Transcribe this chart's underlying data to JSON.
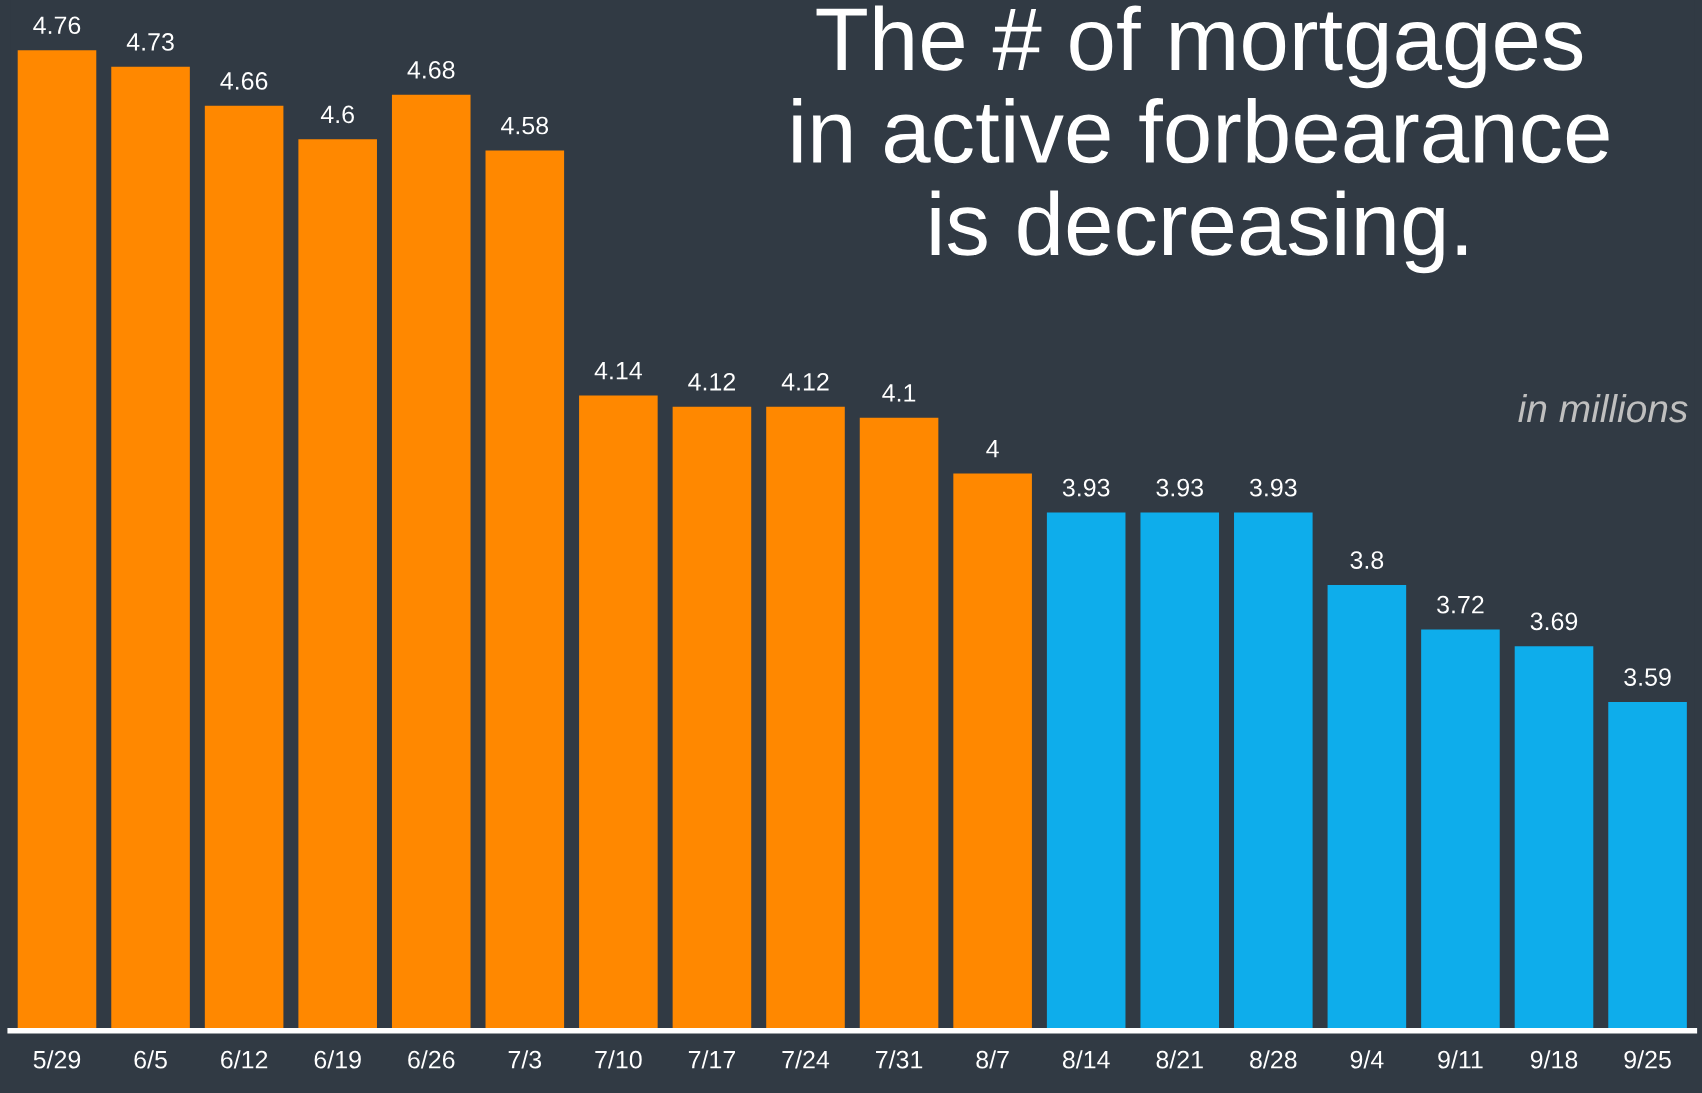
{
  "chart_data": {
    "type": "bar",
    "title": "The # of mortgages\nin active forbearance\nis decreasing.",
    "annotations": [
      "in millions"
    ],
    "categories": [
      "5/29",
      "6/5",
      "6/12",
      "6/19",
      "6/26",
      "7/3",
      "7/10",
      "7/17",
      "7/24",
      "7/31",
      "8/7",
      "8/14",
      "8/21",
      "8/28",
      "9/4",
      "9/11",
      "9/18",
      "9/25"
    ],
    "values": [
      4.76,
      4.73,
      4.66,
      4.6,
      4.68,
      4.58,
      4.14,
      4.12,
      4.12,
      4.1,
      4,
      3.93,
      3.93,
      3.93,
      3.8,
      3.72,
      3.69,
      3.59
    ],
    "colors": [
      "#ff8800",
      "#ff8800",
      "#ff8800",
      "#ff8800",
      "#ff8800",
      "#ff8800",
      "#ff8800",
      "#ff8800",
      "#ff8800",
      "#ff8800",
      "#ff8800",
      "#0eadeb",
      "#0eadeb",
      "#0eadeb",
      "#0eadeb",
      "#0eadeb",
      "#0eadeb",
      "#0eadeb"
    ],
    "ylim": [
      3.0,
      4.85
    ],
    "data_labels": true,
    "tick_labels": "x"
  }
}
